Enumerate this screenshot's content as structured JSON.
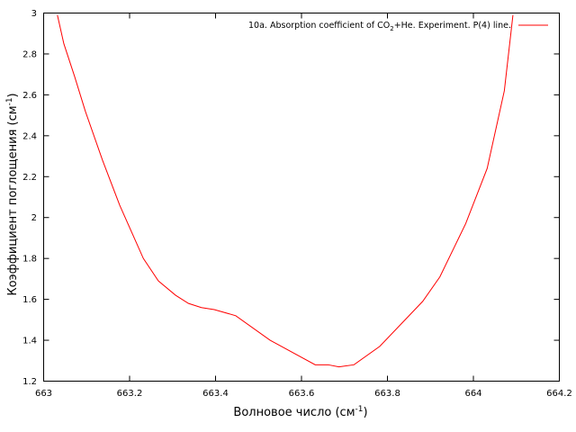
{
  "chart_data": {
    "type": "line",
    "title": "",
    "xlabel": {
      "base": "Волновое число (см",
      "sup": "-1",
      "tail": ")"
    },
    "ylabel": {
      "base": "Коэффициент поглощения (см",
      "sup": "-1",
      "tail": ")"
    },
    "xlim": [
      663,
      664.2
    ],
    "ylim": [
      1.2,
      3
    ],
    "x_ticks": [
      663,
      663.2,
      663.4,
      663.6,
      663.8,
      664,
      664.2
    ],
    "y_ticks": [
      1.2,
      1.4,
      1.6,
      1.8,
      2,
      2.2,
      2.4,
      2.6,
      2.8,
      3
    ],
    "x_tick_labels": [
      "663",
      "663.2",
      "663.4",
      "663.6",
      "663.8",
      "664",
      "664.2"
    ],
    "y_tick_labels": [
      "1.2",
      "1.4",
      "1.6",
      "1.8",
      "2",
      "2.2",
      "2.4",
      "2.6",
      "2.8",
      "3"
    ],
    "grid": false,
    "legend_position": "top-right",
    "series": [
      {
        "name": "10a. Absorption coefficient of CO2+He. Experiment. P(4) line.",
        "legend": {
          "pre": "10a. Absorption coefficient of CO",
          "sub": "2",
          "post": "+He. Experiment. P(4) line."
        },
        "color": "#ff0000",
        "x": [
          663.032,
          663.047,
          663.072,
          663.097,
          663.137,
          663.177,
          663.232,
          663.267,
          663.307,
          663.337,
          663.367,
          663.397,
          663.447,
          663.527,
          663.632,
          663.662,
          663.687,
          663.722,
          663.782,
          663.882,
          663.922,
          663.982,
          664.032,
          664.072,
          664.092
        ],
        "y": [
          2.99,
          2.85,
          2.69,
          2.52,
          2.28,
          2.06,
          1.8,
          1.69,
          1.62,
          1.58,
          1.56,
          1.55,
          1.52,
          1.4,
          1.28,
          1.28,
          1.27,
          1.28,
          1.37,
          1.59,
          1.71,
          1.97,
          2.24,
          2.62,
          2.99
        ]
      }
    ]
  }
}
